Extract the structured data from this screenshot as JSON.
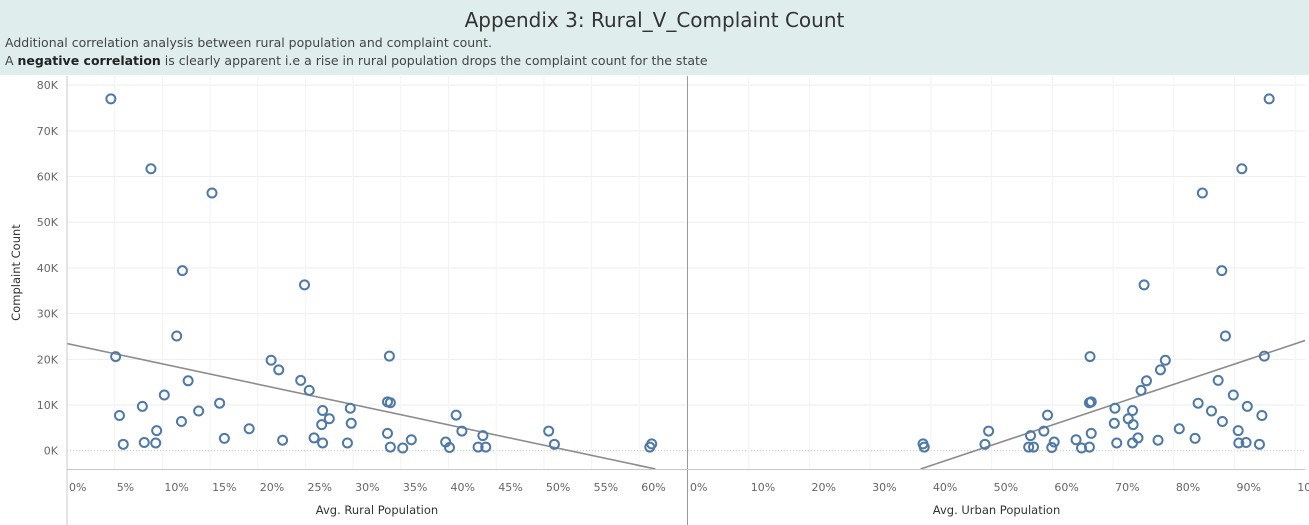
{
  "header": {
    "title": "Appendix 3: Rural_V_Complaint Count",
    "line1": "Additional correlation analysis between rural population and complaint count.",
    "line2_prefix": "A ",
    "line2_bold": "negative correlation",
    "line2_suffix": " is clearly apparent i.e a rise in rural population drops the complaint count for the state"
  },
  "colors": {
    "header_bg": "#dfeeec",
    "marker": "#4e79a7",
    "trend": "#8c8c8c",
    "grid": "#eeeeee"
  },
  "chart_data": [
    {
      "type": "scatter",
      "xlabel": "Avg. Rural Population",
      "ylabel": "Complaint Count",
      "xlim": [
        0,
        65
      ],
      "ylim": [
        -4000,
        82000
      ],
      "x_ticks": [
        0,
        5,
        10,
        15,
        20,
        25,
        30,
        35,
        40,
        45,
        50,
        55,
        60
      ],
      "x_tick_labels": [
        "0%",
        "5%",
        "10%",
        "15%",
        "20%",
        "25%",
        "30%",
        "35%",
        "40%",
        "45%",
        "50%",
        "55%",
        "60%"
      ],
      "y_ticks": [
        0,
        10000,
        20000,
        30000,
        40000,
        50000,
        60000,
        70000,
        80000
      ],
      "y_tick_labels": [
        "0K",
        "10K",
        "20K",
        "30K",
        "40K",
        "50K",
        "60K",
        "70K",
        "80K"
      ],
      "trend_line": {
        "x": [
          -1,
          61.7
        ],
        "y": [
          23900,
          -4000
        ]
      },
      "points": [
        [
          4.6,
          77000
        ],
        [
          8.8,
          61700
        ],
        [
          15.2,
          56400
        ],
        [
          12.1,
          39400
        ],
        [
          24.9,
          36300
        ],
        [
          11.5,
          25100
        ],
        [
          5.1,
          20600
        ],
        [
          33.8,
          20700
        ],
        [
          21.4,
          19800
        ],
        [
          22.2,
          17700
        ],
        [
          12.7,
          15300
        ],
        [
          24.5,
          15400
        ],
        [
          25.4,
          13200
        ],
        [
          10.2,
          12200
        ],
        [
          33.6,
          10700
        ],
        [
          33.9,
          10500
        ],
        [
          16.0,
          10400
        ],
        [
          7.9,
          9700
        ],
        [
          29.7,
          9300
        ],
        [
          26.8,
          8800
        ],
        [
          13.8,
          8700
        ],
        [
          5.5,
          7700
        ],
        [
          40.8,
          7800
        ],
        [
          27.5,
          7000
        ],
        [
          12.0,
          6400
        ],
        [
          29.8,
          6000
        ],
        [
          26.7,
          5700
        ],
        [
          19.1,
          4800
        ],
        [
          9.4,
          4400
        ],
        [
          41.4,
          4300
        ],
        [
          50.5,
          4300
        ],
        [
          33.6,
          3800
        ],
        [
          43.6,
          3300
        ],
        [
          16.5,
          2700
        ],
        [
          25.9,
          2800
        ],
        [
          36.1,
          2400
        ],
        [
          22.6,
          2300
        ],
        [
          39.7,
          1900
        ],
        [
          8.1,
          1800
        ],
        [
          9.3,
          1700
        ],
        [
          26.8,
          1700
        ],
        [
          29.4,
          1700
        ],
        [
          51.1,
          1400
        ],
        [
          61.3,
          1500
        ],
        [
          5.9,
          1400
        ],
        [
          33.9,
          800
        ],
        [
          40.1,
          700
        ],
        [
          43.1,
          800
        ],
        [
          43.9,
          800
        ],
        [
          35.2,
          600
        ],
        [
          61.1,
          800
        ]
      ]
    },
    {
      "type": "scatter",
      "xlabel": "Avg. Urban Population",
      "ylabel": "",
      "xlim": [
        0,
        101.6
      ],
      "ylim": [
        -4000,
        82000
      ],
      "x_ticks": [
        0,
        10,
        20,
        30,
        40,
        50,
        60,
        70,
        80,
        90,
        100
      ],
      "x_tick_labels": [
        "0%",
        "10%",
        "20%",
        "30%",
        "40%",
        "50%",
        "60%",
        "70%",
        "80%",
        "90%",
        "100%"
      ],
      "y_ticks": [
        0,
        10000,
        20000,
        30000,
        40000,
        50000,
        60000,
        70000,
        80000
      ],
      "trend_line": {
        "x": [
          38.3,
          102
        ],
        "y": [
          -4000,
          24300
        ]
      },
      "points": [
        [
          95.7,
          77000
        ],
        [
          91.2,
          61700
        ],
        [
          84.7,
          56400
        ],
        [
          87.9,
          39400
        ],
        [
          75.1,
          36300
        ],
        [
          88.5,
          25100
        ],
        [
          66.2,
          20600
        ],
        [
          94.9,
          20700
        ],
        [
          78.6,
          19800
        ],
        [
          77.8,
          17700
        ],
        [
          75.5,
          15300
        ],
        [
          87.3,
          15400
        ],
        [
          74.6,
          13200
        ],
        [
          89.8,
          12200
        ],
        [
          66.4,
          10700
        ],
        [
          66.1,
          10500
        ],
        [
          84.0,
          10400
        ],
        [
          92.1,
          9700
        ],
        [
          70.3,
          9300
        ],
        [
          73.2,
          8800
        ],
        [
          86.2,
          8700
        ],
        [
          94.5,
          7700
        ],
        [
          59.2,
          7800
        ],
        [
          72.5,
          7000
        ],
        [
          88.0,
          6400
        ],
        [
          70.2,
          6000
        ],
        [
          73.3,
          5700
        ],
        [
          80.9,
          4800
        ],
        [
          90.6,
          4400
        ],
        [
          58.6,
          4300
        ],
        [
          49.5,
          4300
        ],
        [
          66.4,
          3800
        ],
        [
          56.4,
          3300
        ],
        [
          83.5,
          2700
        ],
        [
          74.1,
          2800
        ],
        [
          63.9,
          2400
        ],
        [
          77.4,
          2300
        ],
        [
          60.3,
          1900
        ],
        [
          91.9,
          1800
        ],
        [
          90.7,
          1700
        ],
        [
          73.2,
          1700
        ],
        [
          70.6,
          1700
        ],
        [
          48.9,
          1400
        ],
        [
          38.7,
          1500
        ],
        [
          94.1,
          1400
        ],
        [
          66.1,
          800
        ],
        [
          59.9,
          700
        ],
        [
          56.9,
          800
        ],
        [
          56.1,
          800
        ],
        [
          64.8,
          600
        ],
        [
          38.9,
          800
        ]
      ]
    }
  ]
}
